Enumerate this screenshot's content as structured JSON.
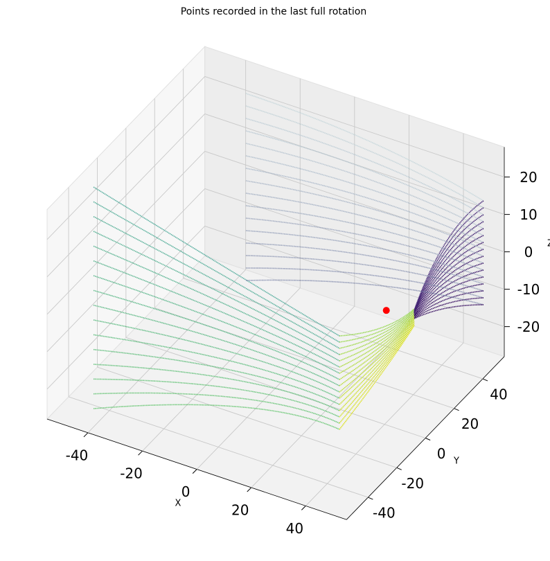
{
  "chart_data": {
    "type": "scatter3d",
    "title": "Points recorded in the last full rotation",
    "x_label": "X",
    "y_label": "Y",
    "z_label": "Z",
    "xlim": [
      -55,
      55
    ],
    "ylim": [
      -55,
      55
    ],
    "zlim": [
      -28,
      28
    ],
    "xticks": [
      -40,
      -20,
      0,
      20,
      40
    ],
    "yticks": [
      -40,
      -20,
      0,
      20,
      40
    ],
    "zticks": [
      -20,
      -10,
      0,
      10,
      20
    ],
    "grid": true,
    "marker": {
      "x": 38,
      "y": 5,
      "z": 0,
      "color": "#ff0000"
    }
  }
}
